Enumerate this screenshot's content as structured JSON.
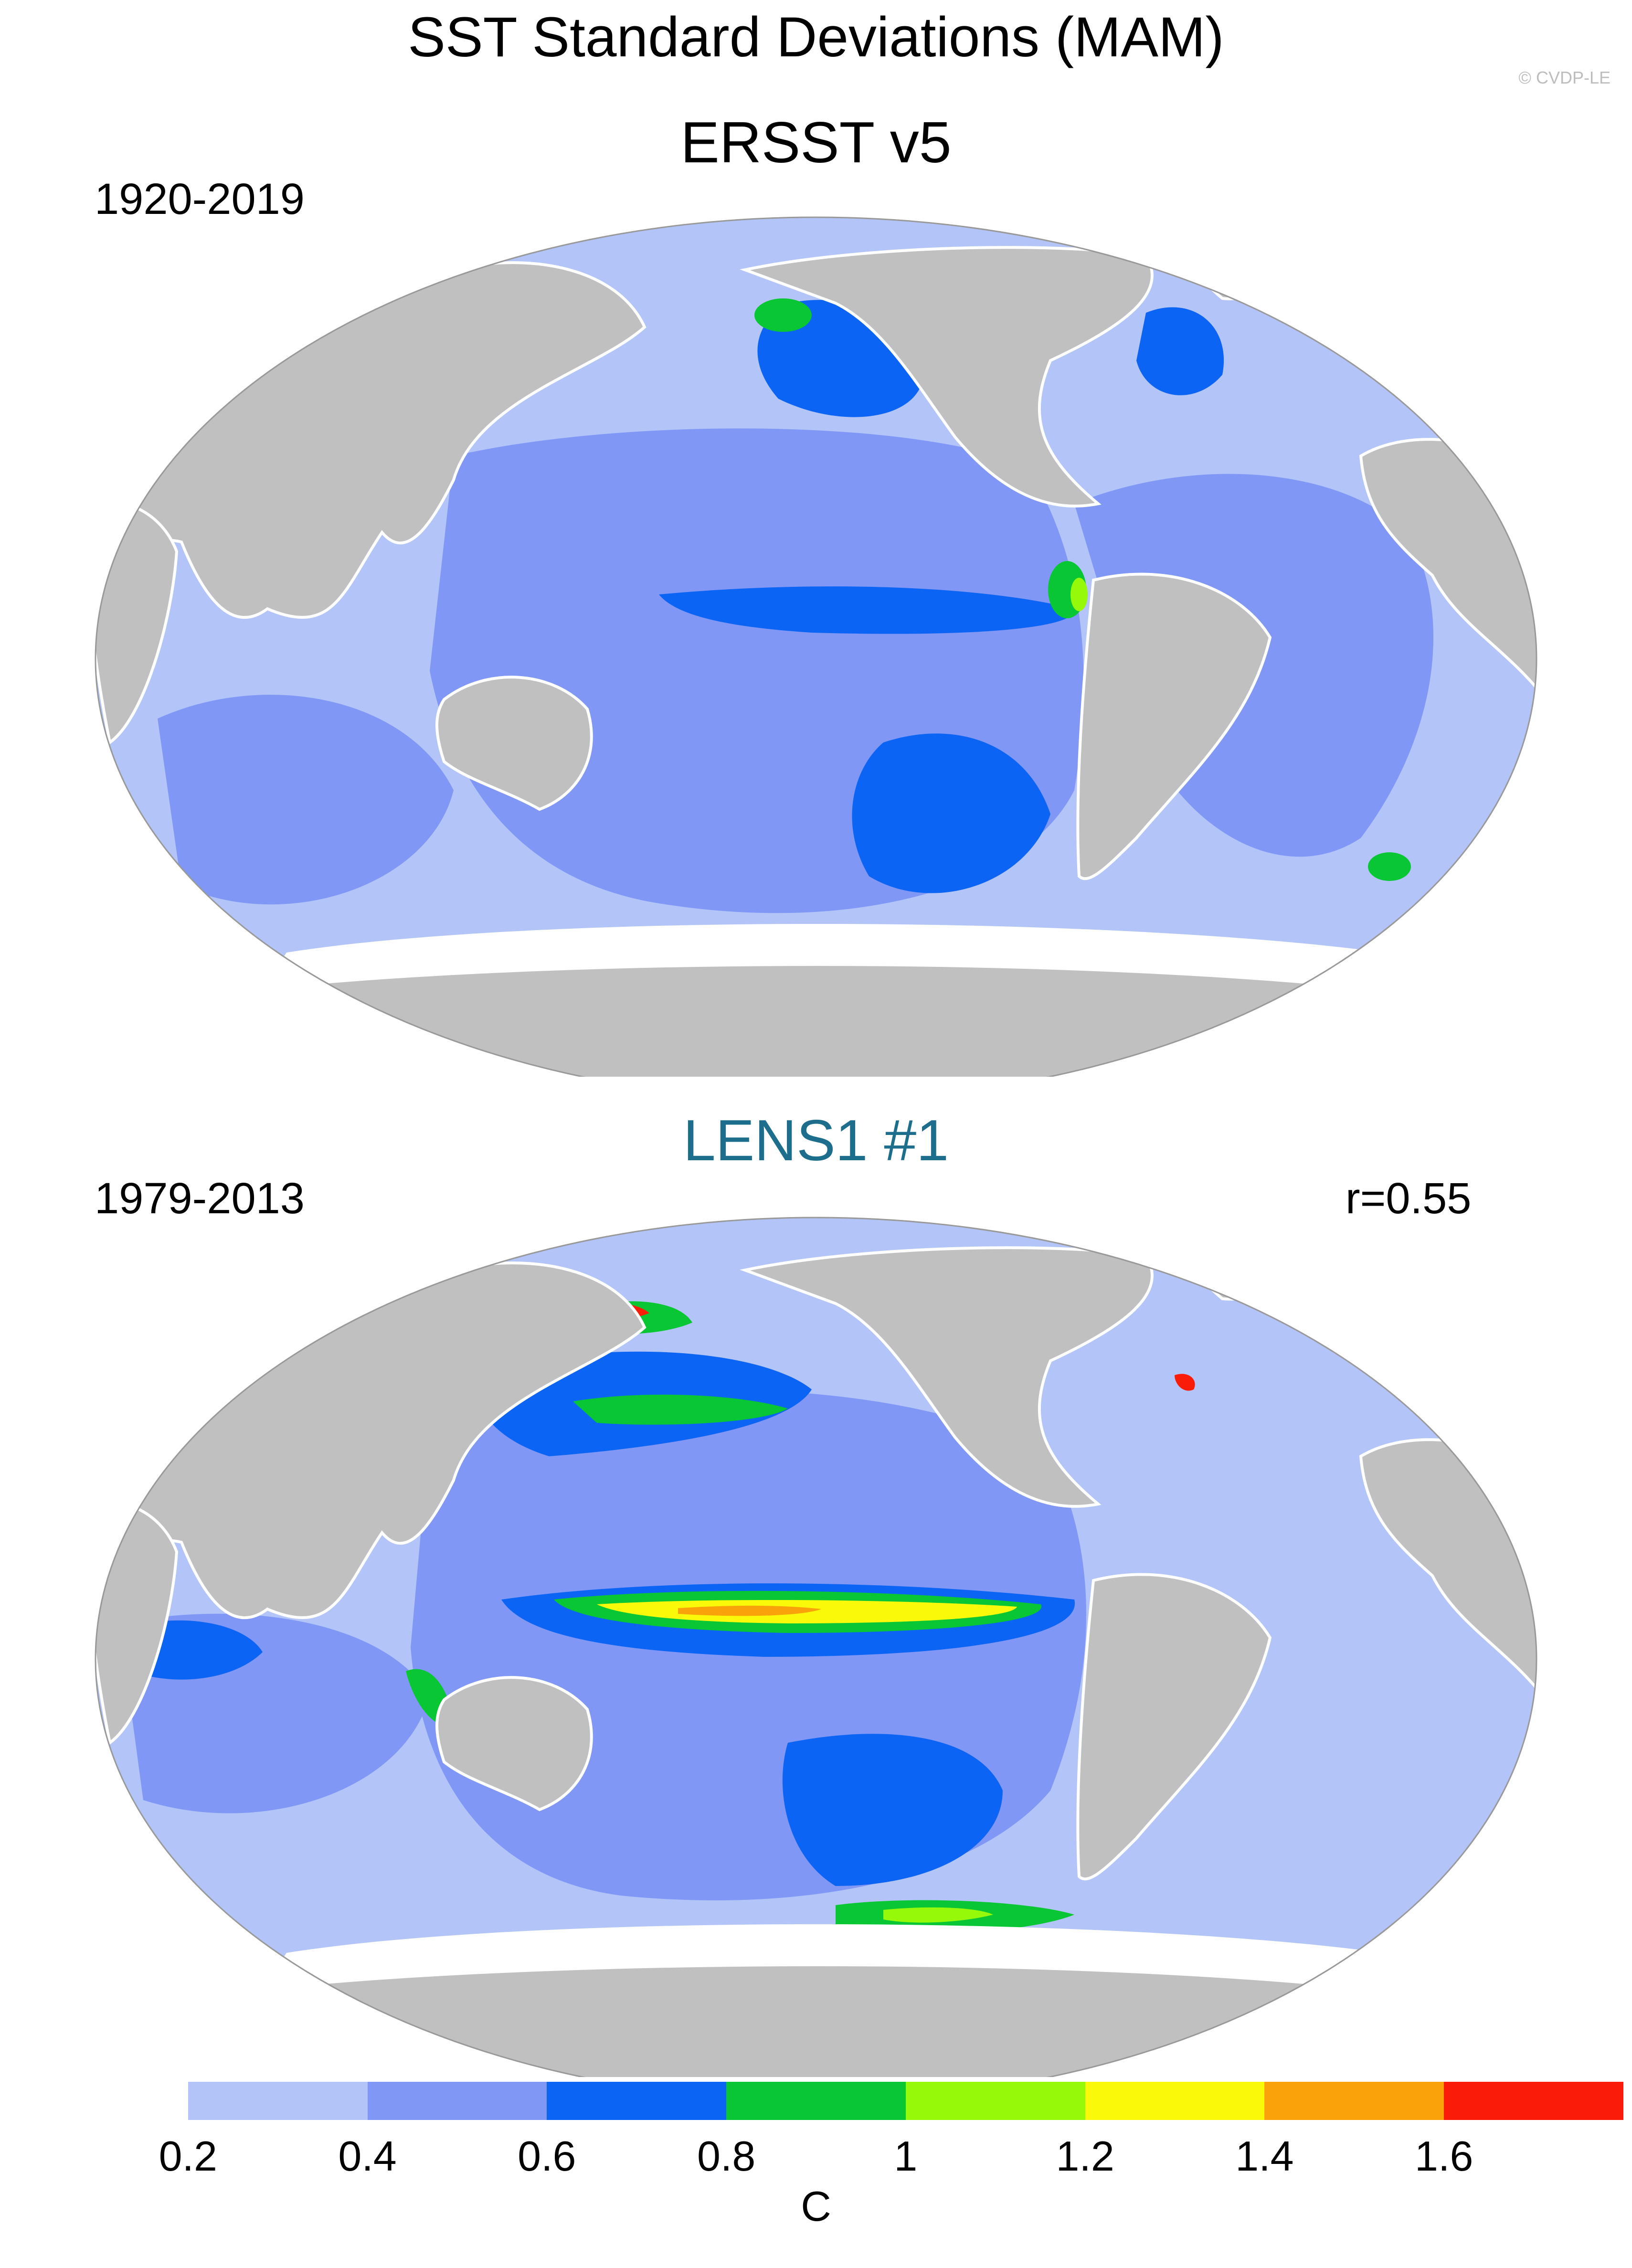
{
  "figure": {
    "title": "SST Standard Deviations (MAM)",
    "credit": "© CVDP-LE"
  },
  "panels": [
    {
      "title": "ERSST v5",
      "period": "1920-2019",
      "stat": ""
    },
    {
      "title": "LENS1 #1",
      "period": "1979-2013",
      "stat": "r=0.55"
    }
  ],
  "colorbar": {
    "unit": "C",
    "ticks": [
      "0.2",
      "0.4",
      "0.6",
      "0.8",
      "1",
      "1.2",
      "1.4",
      "1.6"
    ],
    "colors": [
      "#ffffff",
      "#b3c5f8",
      "#8097f6",
      "#0b64f3",
      "#09c634",
      "#95f909",
      "#f9f909",
      "#f9a209",
      "#f91d09"
    ]
  },
  "chart_data": {
    "type": "heatmap",
    "variable": "SST standard deviation",
    "levels": [
      0.2,
      0.4,
      0.6,
      0.8,
      1.0,
      1.2,
      1.4,
      1.6
    ]
  }
}
